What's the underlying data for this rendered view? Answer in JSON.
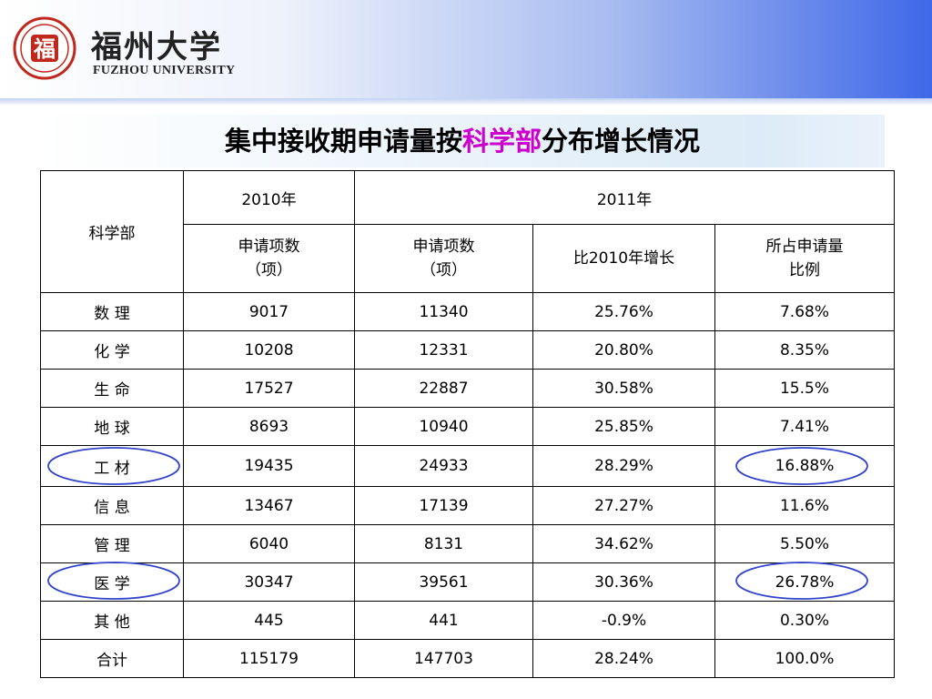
{
  "logo": {
    "name_cn": "福州大学",
    "name_en": "FUZHOU UNIVERSITY",
    "seal_char": "福"
  },
  "title": {
    "part1": "集中接收期申请量按",
    "highlight": "科学部",
    "part2": "分布增长情况"
  },
  "table": {
    "header": {
      "dept": "科学部",
      "y2010": "2010年",
      "y2011": "2011年",
      "apps2010_l1": "申请项数",
      "apps2010_l2": "（项）",
      "apps2011_l1": "申请项数",
      "apps2011_l2": "（项）",
      "growth": "比2010年增长",
      "share_l1": "所占申请量",
      "share_l2": "比例"
    },
    "rows": [
      {
        "dept": "数 理",
        "a2010": "9017",
        "a2011": "11340",
        "growth": "25.76%",
        "share": "7.68%"
      },
      {
        "dept": "化 学",
        "a2010": "10208",
        "a2011": "12331",
        "growth": "20.80%",
        "share": "8.35%"
      },
      {
        "dept": "生 命",
        "a2010": "17527",
        "a2011": "22887",
        "growth": "30.58%",
        "share": "15.5%"
      },
      {
        "dept": "地 球",
        "a2010": "8693",
        "a2011": "10940",
        "growth": "25.85%",
        "share": "7.41%"
      },
      {
        "dept": "工 材",
        "a2010": "19435",
        "a2011": "24933",
        "growth": "28.29%",
        "share": "16.88%"
      },
      {
        "dept": "信 息",
        "a2010": "13467",
        "a2011": "17139",
        "growth": "27.27%",
        "share": "11.6%"
      },
      {
        "dept": "管 理",
        "a2010": "6040",
        "a2011": "8131",
        "growth": "34.62%",
        "share": "5.50%"
      },
      {
        "dept": "医 学",
        "a2010": "30347",
        "a2011": "39561",
        "growth": "30.36%",
        "share": "26.78%"
      },
      {
        "dept": "其 他",
        "a2010": "445",
        "a2011": "441",
        "growth": "-0.9%",
        "share": "0.30%"
      }
    ],
    "total": {
      "dept": "合计",
      "a2010": "115179",
      "a2011": "147703",
      "growth": "28.24%",
      "share": "100.0%"
    }
  },
  "colors": {
    "highlight_red": "#e8004b",
    "total_magenta": "#c000c0",
    "oval_blue": "#3344cc",
    "header_blue": "#3f68e8"
  }
}
